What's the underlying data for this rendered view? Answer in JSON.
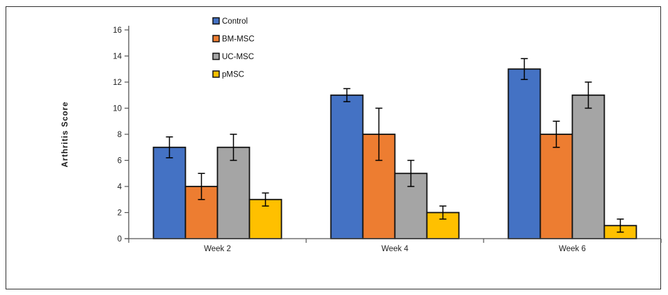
{
  "chart_data": {
    "type": "bar",
    "title": "",
    "xlabel": "",
    "ylabel": "Arthritis Score",
    "categories": [
      "Week 2",
      "Week 4",
      "Week 6"
    ],
    "series": [
      {
        "name": "Control",
        "color": "#4472C4",
        "values": [
          7,
          11,
          13
        ],
        "errors": [
          0.8,
          0.5,
          0.8
        ]
      },
      {
        "name": "BM-MSC",
        "color": "#ED7D31",
        "values": [
          4,
          8,
          8
        ],
        "errors": [
          1,
          2,
          1
        ]
      },
      {
        "name": "UC-MSC",
        "color": "#A5A5A5",
        "values": [
          7,
          5,
          11
        ],
        "errors": [
          1,
          1,
          1
        ]
      },
      {
        "name": "pMSC",
        "color": "#FFC000",
        "values": [
          3,
          2,
          1
        ],
        "errors": [
          0.5,
          0.5,
          0.5
        ]
      }
    ],
    "ylim": [
      0,
      16
    ],
    "ytick_step": 2,
    "grid": false,
    "legend_position": "top-left-of-plot",
    "colors": {
      "bar_outline": "#111111",
      "error_bar": "#000000",
      "axis_line": "#555555",
      "frame_border": "#2f2f2f",
      "text": "#1f1f1f"
    }
  }
}
